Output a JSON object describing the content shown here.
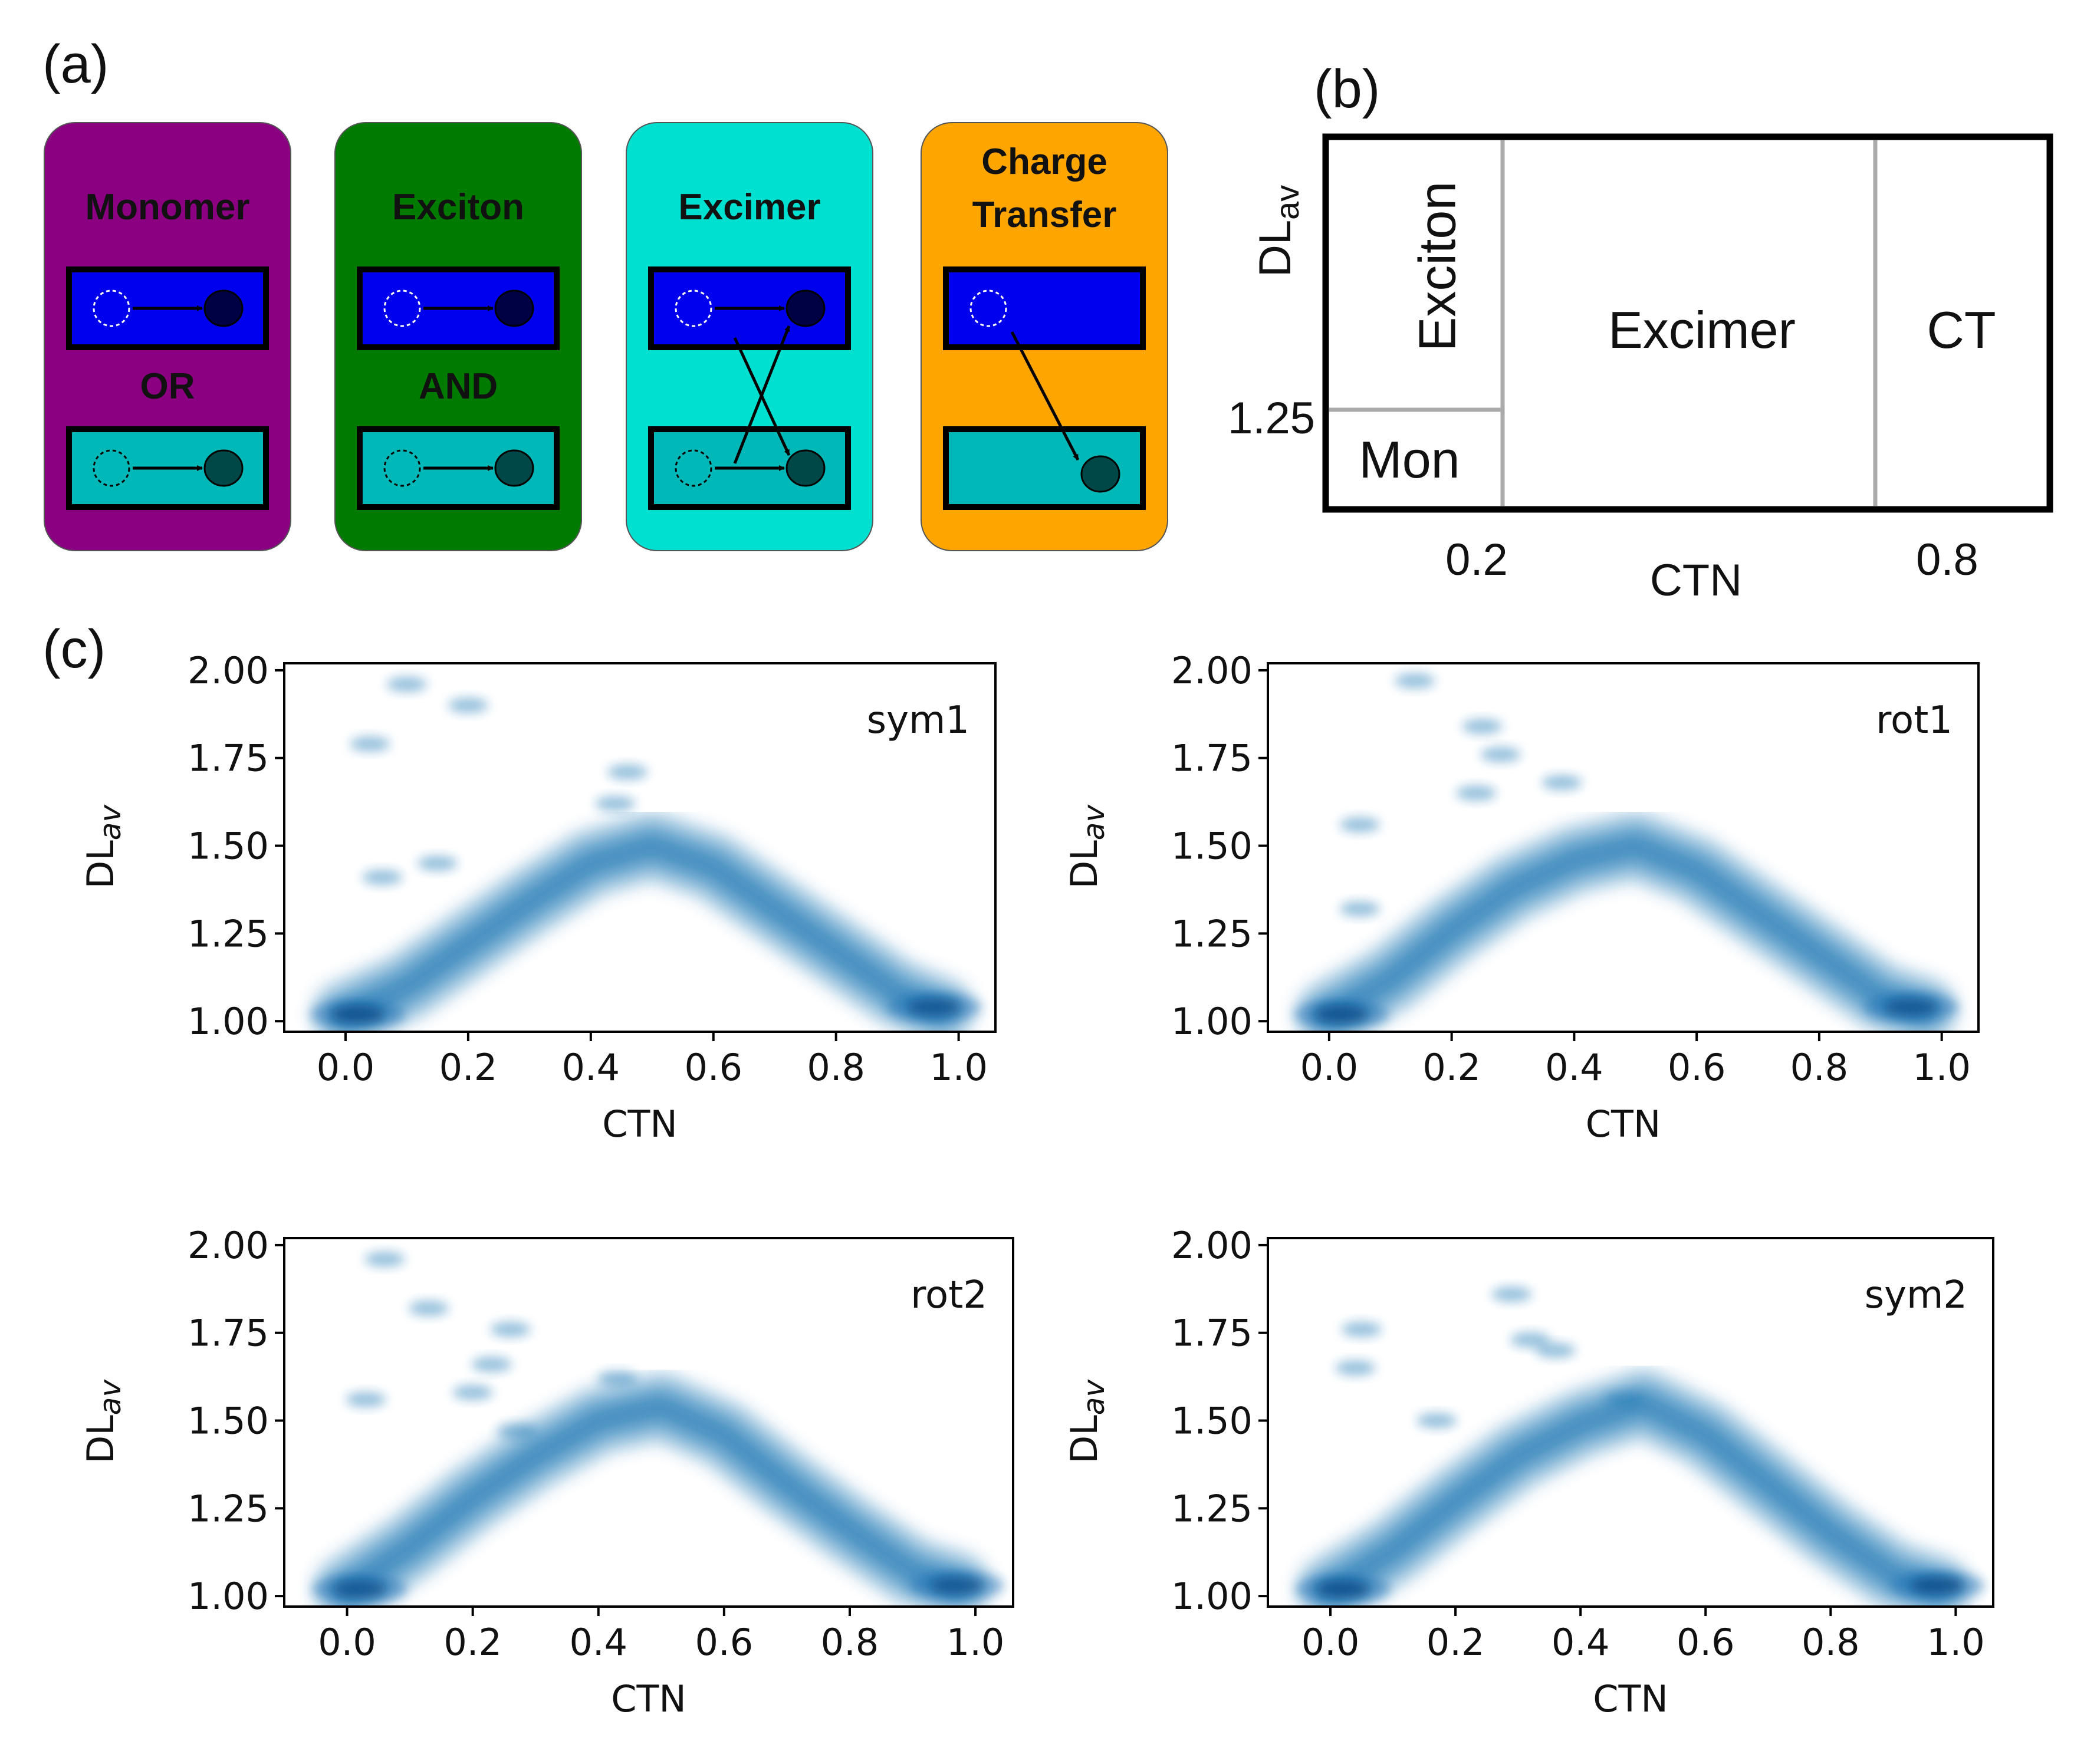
{
  "panel_labels": {
    "a": "(a)",
    "b": "(b)",
    "c": "(c)"
  },
  "colors": {
    "monomer": "#8b0080",
    "exciton": "#007b00",
    "excimer": "#00e0d0",
    "charge_transfer": "#ffa500",
    "upper_state": "#0000ee",
    "lower_state": "#00b8b8",
    "density": "#1f77b4"
  },
  "cards": [
    {
      "id": "monomer",
      "title_lines": [
        "Monomer"
      ],
      "connector": "OR",
      "kind": "monomer"
    },
    {
      "id": "exciton",
      "title_lines": [
        "Exciton"
      ],
      "connector": "AND",
      "kind": "exciton"
    },
    {
      "id": "excimer",
      "title_lines": [
        "Excimer"
      ],
      "connector": "",
      "kind": "excimer"
    },
    {
      "id": "charge-transfer",
      "title_lines": [
        "Charge",
        "Transfer"
      ],
      "connector": "",
      "kind": "ct"
    }
  ],
  "regime_map": {
    "y_label": "DL",
    "y_label_sub": "av",
    "x_label": "CTN",
    "y_tick": "1.25",
    "x_ticks": [
      "0.2",
      "0.8"
    ],
    "regions": {
      "exciton": "Exciton",
      "mon": "Mon",
      "excimer": "Excimer",
      "ct": "CT"
    }
  },
  "chart_data": [
    {
      "type": "kde",
      "label": "sym1",
      "xlabel": "CTN",
      "ylabel": "DL",
      "ylabel_sub": "av",
      "xlim": [
        -0.1,
        1.06
      ],
      "ylim": [
        0.97,
        2.02
      ],
      "xticks": [
        "0.0",
        "0.2",
        "0.4",
        "0.6",
        "0.8",
        "1.0"
      ],
      "yticks": [
        "1.00",
        "1.25",
        "1.50",
        "1.75",
        "2.00"
      ],
      "ridge": [
        [
          0.0,
          1.02
        ],
        [
          0.1,
          1.1
        ],
        [
          0.2,
          1.22
        ],
        [
          0.3,
          1.34
        ],
        [
          0.4,
          1.45
        ],
        [
          0.5,
          1.5
        ],
        [
          0.6,
          1.44
        ],
        [
          0.7,
          1.32
        ],
        [
          0.8,
          1.2
        ],
        [
          0.9,
          1.08
        ],
        [
          0.97,
          1.03
        ]
      ],
      "hotspots": [
        [
          0.02,
          1.02,
          3
        ],
        [
          0.96,
          1.04,
          2
        ]
      ],
      "islands": [
        [
          0.1,
          1.96
        ],
        [
          0.2,
          1.9
        ],
        [
          0.04,
          1.79
        ],
        [
          0.06,
          1.41
        ],
        [
          0.15,
          1.45
        ],
        [
          0.44,
          1.62
        ],
        [
          0.46,
          1.71
        ]
      ]
    },
    {
      "type": "kde",
      "label": "rot1",
      "xlabel": "CTN",
      "ylabel": "DL",
      "ylabel_sub": "av",
      "xlim": [
        -0.1,
        1.06
      ],
      "ylim": [
        0.97,
        2.02
      ],
      "xticks": [
        "0.0",
        "0.2",
        "0.4",
        "0.6",
        "0.8",
        "1.0"
      ],
      "yticks": [
        "1.00",
        "1.25",
        "1.50",
        "1.75",
        "2.00"
      ],
      "ridge": [
        [
          0.0,
          1.02
        ],
        [
          0.1,
          1.12
        ],
        [
          0.2,
          1.26
        ],
        [
          0.3,
          1.38
        ],
        [
          0.4,
          1.46
        ],
        [
          0.5,
          1.5
        ],
        [
          0.6,
          1.43
        ],
        [
          0.7,
          1.31
        ],
        [
          0.8,
          1.19
        ],
        [
          0.9,
          1.07
        ],
        [
          0.97,
          1.03
        ]
      ],
      "hotspots": [
        [
          0.02,
          1.02,
          3
        ],
        [
          0.95,
          1.04,
          2
        ]
      ],
      "islands": [
        [
          0.14,
          1.97
        ],
        [
          0.25,
          1.84
        ],
        [
          0.28,
          1.76
        ],
        [
          0.24,
          1.65
        ],
        [
          0.05,
          1.56
        ],
        [
          0.05,
          1.32
        ],
        [
          0.38,
          1.68
        ]
      ]
    },
    {
      "type": "kde",
      "label": "rot2",
      "xlabel": "CTN",
      "ylabel": "DL",
      "ylabel_sub": "av",
      "xlim": [
        -0.1,
        1.06
      ],
      "ylim": [
        0.97,
        2.02
      ],
      "xticks": [
        "0.0",
        "0.2",
        "0.4",
        "0.6",
        "0.8",
        "1.0"
      ],
      "yticks": [
        "1.00",
        "1.25",
        "1.50",
        "1.75",
        "2.00"
      ],
      "ridge": [
        [
          0.0,
          1.02
        ],
        [
          0.1,
          1.14
        ],
        [
          0.2,
          1.28
        ],
        [
          0.3,
          1.4
        ],
        [
          0.4,
          1.5
        ],
        [
          0.5,
          1.54
        ],
        [
          0.6,
          1.46
        ],
        [
          0.7,
          1.32
        ],
        [
          0.8,
          1.19
        ],
        [
          0.9,
          1.07
        ],
        [
          0.97,
          1.03
        ]
      ],
      "hotspots": [
        [
          0.02,
          1.02,
          2
        ],
        [
          0.97,
          1.03,
          2
        ]
      ],
      "islands": [
        [
          0.06,
          1.96
        ],
        [
          0.13,
          1.82
        ],
        [
          0.26,
          1.76
        ],
        [
          0.23,
          1.66
        ],
        [
          0.03,
          1.56
        ],
        [
          0.2,
          1.58
        ],
        [
          0.27,
          1.47
        ],
        [
          0.43,
          1.62
        ]
      ]
    },
    {
      "type": "kde",
      "label": "sym2",
      "xlabel": "CTN",
      "ylabel": "DL",
      "ylabel_sub": "av",
      "xlim": [
        -0.1,
        1.06
      ],
      "ylim": [
        0.97,
        2.02
      ],
      "xticks": [
        "0.0",
        "0.2",
        "0.4",
        "0.6",
        "0.8",
        "1.0"
      ],
      "yticks": [
        "1.00",
        "1.25",
        "1.50",
        "1.75",
        "2.00"
      ],
      "ridge": [
        [
          0.0,
          1.02
        ],
        [
          0.1,
          1.13
        ],
        [
          0.2,
          1.27
        ],
        [
          0.3,
          1.4
        ],
        [
          0.4,
          1.49
        ],
        [
          0.5,
          1.55
        ],
        [
          0.6,
          1.46
        ],
        [
          0.7,
          1.32
        ],
        [
          0.8,
          1.18
        ],
        [
          0.9,
          1.06
        ],
        [
          0.97,
          1.02
        ]
      ],
      "hotspots": [
        [
          0.02,
          1.02,
          3
        ],
        [
          0.97,
          1.03,
          3
        ]
      ],
      "islands": [
        [
          0.29,
          1.86
        ],
        [
          0.05,
          1.76
        ],
        [
          0.04,
          1.65
        ],
        [
          0.32,
          1.73
        ],
        [
          0.36,
          1.7
        ],
        [
          0.17,
          1.5
        ],
        [
          0.47,
          1.56
        ]
      ]
    }
  ]
}
